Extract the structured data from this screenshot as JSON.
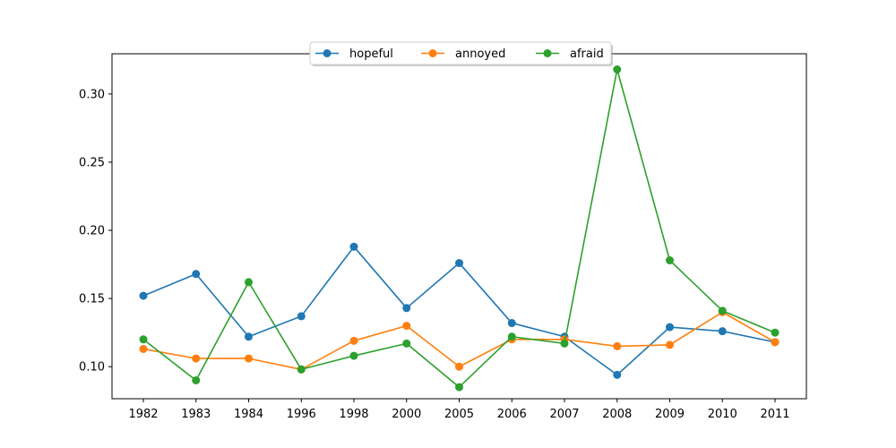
{
  "chart_data": {
    "type": "line",
    "categories": [
      "1982",
      "1983",
      "1984",
      "1996",
      "1998",
      "2000",
      "2005",
      "2006",
      "2007",
      "2008",
      "2009",
      "2010",
      "2011"
    ],
    "series": [
      {
        "name": "hopeful",
        "color": "#1f77b4",
        "values": [
          0.152,
          0.168,
          0.122,
          0.137,
          0.188,
          0.143,
          0.176,
          0.132,
          0.122,
          0.094,
          0.129,
          0.126,
          0.118
        ]
      },
      {
        "name": "annoyed",
        "color": "#ff7f0e",
        "values": [
          0.113,
          0.106,
          0.106,
          0.098,
          0.119,
          0.13,
          0.1,
          0.12,
          0.12,
          0.115,
          0.116,
          0.14,
          0.118
        ]
      },
      {
        "name": "afraid",
        "color": "#2ca02c",
        "values": [
          0.12,
          0.09,
          0.162,
          0.098,
          0.108,
          0.117,
          0.085,
          0.122,
          0.117,
          0.318,
          0.178,
          0.141,
          0.125
        ]
      }
    ],
    "yticks": [
      "0.10",
      "0.15",
      "0.20",
      "0.25",
      "0.30"
    ],
    "ylim": [
      0.0765,
      0.3295
    ],
    "title": "",
    "xlabel": "",
    "ylabel": "",
    "grid": false,
    "legend_position": "top-center"
  }
}
